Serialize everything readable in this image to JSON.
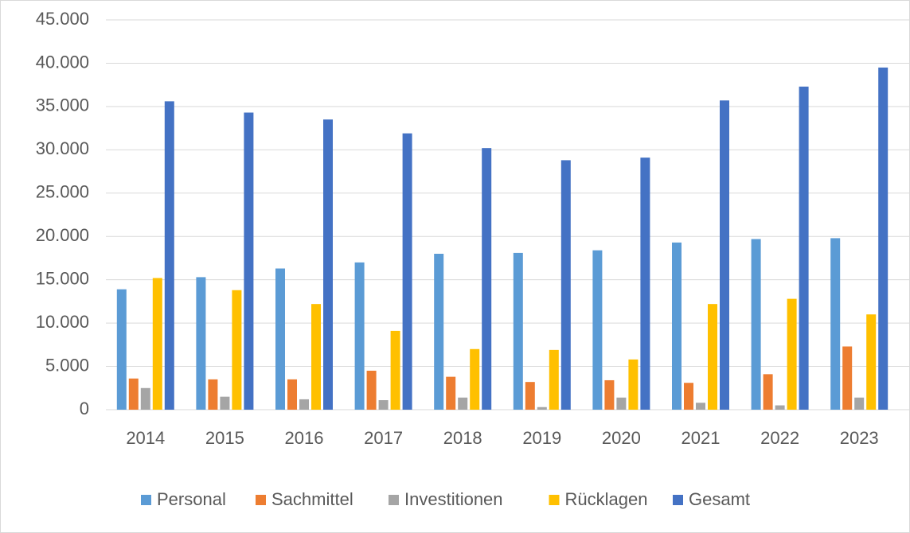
{
  "chart_data": {
    "type": "bar",
    "categories": [
      "2014",
      "2015",
      "2016",
      "2017",
      "2018",
      "2019",
      "2020",
      "2021",
      "2022",
      "2023"
    ],
    "series": [
      {
        "name": "Personal",
        "color": "#5b9bd5",
        "values": [
          13900,
          15300,
          16300,
          17000,
          18000,
          18100,
          18400,
          19300,
          19700,
          19800
        ]
      },
      {
        "name": "Sachmittel",
        "color": "#ed7d31",
        "values": [
          3600,
          3500,
          3500,
          4500,
          3800,
          3200,
          3400,
          3100,
          4100,
          7300
        ]
      },
      {
        "name": "Investitionen",
        "color": "#a5a5a5",
        "values": [
          2500,
          1500,
          1200,
          1100,
          1400,
          300,
          1400,
          800,
          500,
          1400
        ]
      },
      {
        "name": "Rücklagen",
        "color": "#ffc000",
        "values": [
          15200,
          13800,
          12200,
          9100,
          7000,
          6900,
          5800,
          12200,
          12800,
          11000
        ]
      },
      {
        "name": "Gesamt",
        "color": "#4472c4",
        "values": [
          35600,
          34300,
          33500,
          31900,
          30200,
          28800,
          29100,
          35700,
          37300,
          39500
        ]
      }
    ],
    "ylim": [
      0,
      45000
    ],
    "yticks": [
      0,
      {
        "value": 5000,
        "label": "5.000"
      },
      {
        "value": 10000,
        "label": "10.000"
      },
      {
        "value": 15000,
        "label": "15.000"
      },
      {
        "value": 20000,
        "label": "20.000"
      },
      {
        "value": 25000,
        "label": "25.000"
      },
      {
        "value": 30000,
        "label": "30.000"
      },
      {
        "value": 35000,
        "label": "35.000"
      },
      {
        "value": 40000,
        "label": "40.000"
      },
      {
        "value": 45000,
        "label": "45.000"
      }
    ],
    "grid": true,
    "legend": "bottom"
  }
}
